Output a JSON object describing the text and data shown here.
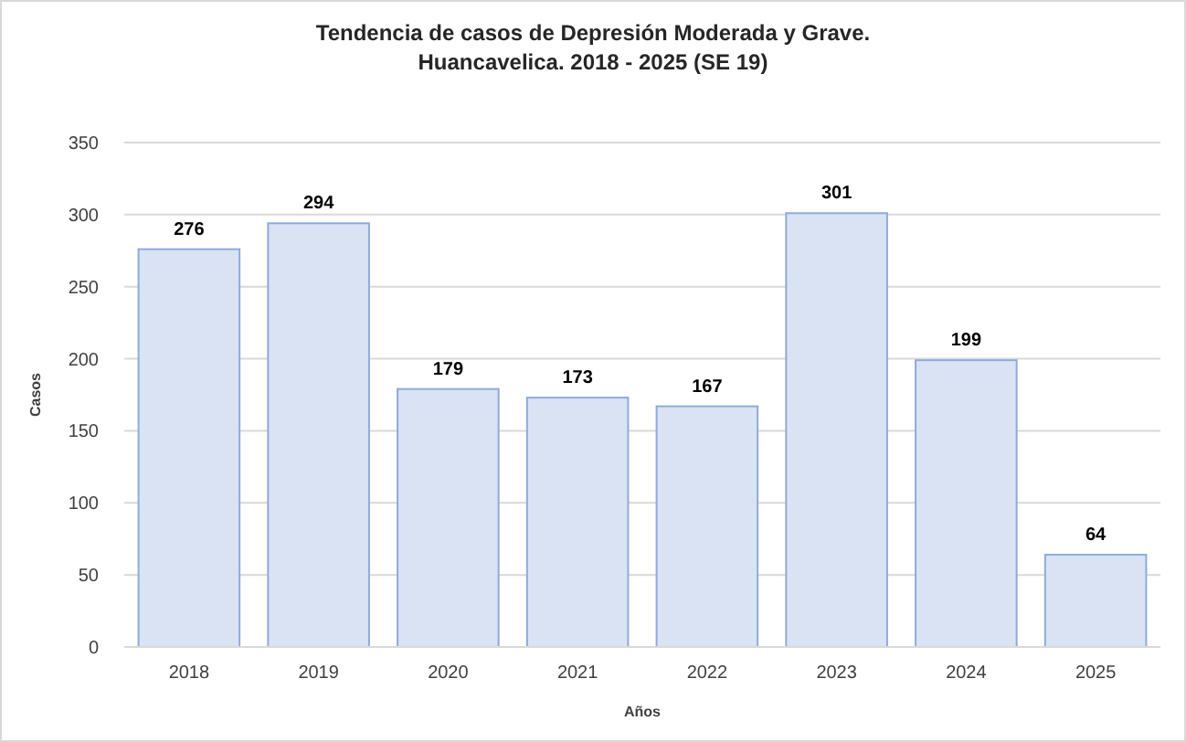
{
  "chart_data": {
    "type": "bar",
    "title": "Tendencia de casos de Depresión Moderada y Grave.",
    "subtitle": "Huancavelica. 2018 - 2025 (SE 19)",
    "xlabel": "Años",
    "ylabel": "Casos",
    "categories": [
      "2018",
      "2019",
      "2020",
      "2021",
      "2022",
      "2023",
      "2024",
      "2025"
    ],
    "values": [
      276,
      294,
      179,
      173,
      167,
      301,
      199,
      64
    ],
    "color": "#dae3f3",
    "ylim": [
      0,
      350
    ],
    "yticks": [
      0,
      50,
      100,
      150,
      200,
      250,
      300,
      350
    ],
    "grid": "y",
    "data_labels": true
  }
}
